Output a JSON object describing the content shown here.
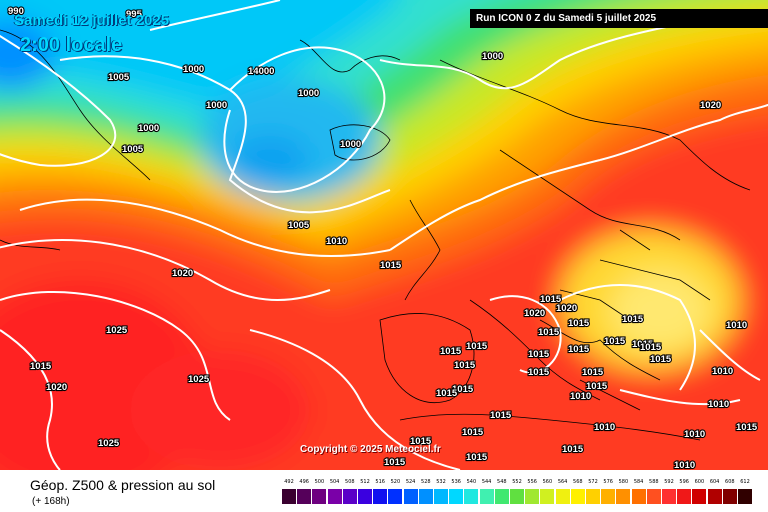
{
  "header": {
    "date_label": "Samedi 12 juillet 2025",
    "time_label": "2:00 locale",
    "run_label": "Run ICON 0 Z du Samedi 5 juillet 2025"
  },
  "copyright": "Copyright © 2025 Meteociel.fr",
  "legend": {
    "title": "Géop. Z500 & pression au sol",
    "subtitle": "(+ 168h)",
    "scale_values": [
      "492",
      "496",
      "500",
      "504",
      "508",
      "512",
      "516",
      "520",
      "524",
      "528",
      "532",
      "536",
      "540",
      "544",
      "548",
      "552",
      "556",
      "560",
      "564",
      "568",
      "572",
      "576",
      "580",
      "584",
      "588",
      "592",
      "596",
      "600",
      "604",
      "608",
      "612"
    ],
    "scale_colors": [
      "#3a0030",
      "#55005a",
      "#6e0080",
      "#7a00a8",
      "#5a00c8",
      "#3a00e0",
      "#1010f0",
      "#0030ff",
      "#0060ff",
      "#0090ff",
      "#00b8ff",
      "#00d8ff",
      "#20e8e0",
      "#40f0b0",
      "#40e870",
      "#60e040",
      "#a0e830",
      "#d0f020",
      "#f0f010",
      "#fff000",
      "#ffd000",
      "#ffb000",
      "#ff9000",
      "#ff7000",
      "#ff5020",
      "#ff3030",
      "#f01818",
      "#d00000",
      "#b00000",
      "#800000",
      "#300000"
    ]
  },
  "isobars": [
    {
      "text": "990",
      "kind": "pressure"
    },
    {
      "text": "995",
      "kind": "pressure"
    },
    {
      "text": "1005",
      "kind": "pressure"
    },
    {
      "text": "1000",
      "kind": "pressure"
    },
    {
      "text": "14000",
      "kind": "pressure"
    },
    {
      "text": "1000",
      "kind": "pressure"
    },
    {
      "text": "1000",
      "kind": "pressure"
    },
    {
      "text": "1000",
      "kind": "pressure"
    },
    {
      "text": "1005",
      "kind": "pressure"
    },
    {
      "text": "1000",
      "kind": "pressure"
    },
    {
      "text": "1000",
      "kind": "pressure"
    },
    {
      "text": "1005",
      "kind": "pressure"
    },
    {
      "text": "1010",
      "kind": "pressure"
    },
    {
      "text": "1015",
      "kind": "pressure"
    },
    {
      "text": "1020",
      "kind": "pressure"
    },
    {
      "text": "1020",
      "kind": "pressure"
    },
    {
      "text": "1025",
      "kind": "pressure"
    },
    {
      "text": "1015",
      "kind": "pressure"
    },
    {
      "text": "1020",
      "kind": "pressure"
    },
    {
      "text": "1025",
      "kind": "pressure"
    },
    {
      "text": "1025",
      "kind": "pressure"
    },
    {
      "text": "1015",
      "kind": "pressure"
    },
    {
      "text": "1015",
      "kind": "pressure"
    },
    {
      "text": "1015",
      "kind": "pressure"
    },
    {
      "text": "1015",
      "kind": "pressure"
    },
    {
      "text": "1015",
      "kind": "pressure"
    },
    {
      "text": "1020",
      "kind": "pressure"
    },
    {
      "text": "1020",
      "kind": "pressure"
    },
    {
      "text": "1015",
      "kind": "pressure"
    },
    {
      "text": "1015",
      "kind": "pressure"
    },
    {
      "text": "1015",
      "kind": "pressure"
    },
    {
      "text": "1015",
      "kind": "pressure"
    },
    {
      "text": "1015",
      "kind": "pressure"
    },
    {
      "text": "1015",
      "kind": "pressure"
    },
    {
      "text": "1015",
      "kind": "pressure"
    },
    {
      "text": "1015",
      "kind": "pressure"
    },
    {
      "text": "1015",
      "kind": "pressure"
    },
    {
      "text": "1015",
      "kind": "pressure"
    },
    {
      "text": "1010",
      "kind": "pressure"
    },
    {
      "text": "1015",
      "kind": "pressure"
    },
    {
      "text": "1015",
      "kind": "pressure"
    },
    {
      "text": "1015",
      "kind": "pressure"
    },
    {
      "text": "1015",
      "kind": "pressure"
    },
    {
      "text": "1015",
      "kind": "pressure"
    },
    {
      "text": "1015",
      "kind": "pressure"
    },
    {
      "text": "1015",
      "kind": "pressure"
    },
    {
      "text": "1010",
      "kind": "pressure"
    },
    {
      "text": "1010",
      "kind": "pressure"
    },
    {
      "text": "1010",
      "kind": "pressure"
    },
    {
      "text": "1010",
      "kind": "pressure"
    },
    {
      "text": "1015",
      "kind": "pressure"
    },
    {
      "text": "1010",
      "kind": "pressure"
    },
    {
      "text": "1015",
      "kind": "pressure"
    },
    {
      "text": "1010",
      "kind": "pressure"
    },
    {
      "text": "1015",
      "kind": "pressure"
    }
  ]
}
